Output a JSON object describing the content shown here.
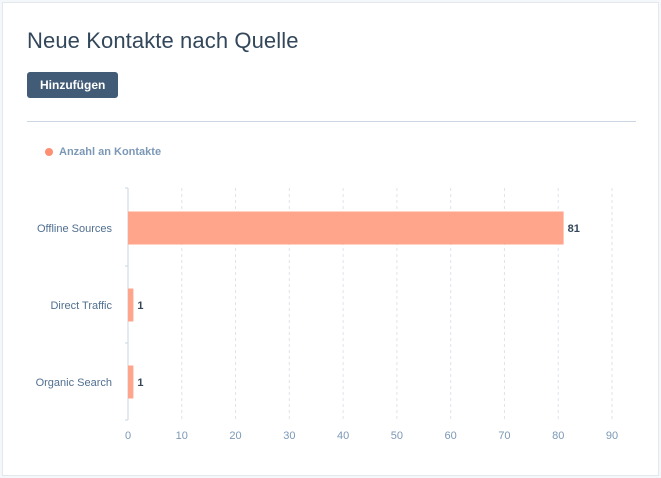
{
  "header": {
    "title": "Neue Kontakte nach Quelle"
  },
  "toolbar": {
    "add_label": "Hinzufügen"
  },
  "colors": {
    "bar": "#ffa58c",
    "legend_dot": "#ff8f73",
    "button": "#425b76"
  },
  "chart_data": {
    "type": "bar",
    "orientation": "horizontal",
    "categories": [
      "Offline Sources",
      "Direct Traffic",
      "Organic Search"
    ],
    "series": [
      {
        "name": "Anzahl an Kontakte",
        "values": [
          81,
          1,
          1
        ]
      }
    ],
    "xlim": [
      0,
      90
    ],
    "xticks": [
      0,
      10,
      20,
      30,
      40,
      50,
      60,
      70,
      80,
      90
    ],
    "grid": "vertical dashed",
    "legend_position": "top-left",
    "data_labels": true
  }
}
